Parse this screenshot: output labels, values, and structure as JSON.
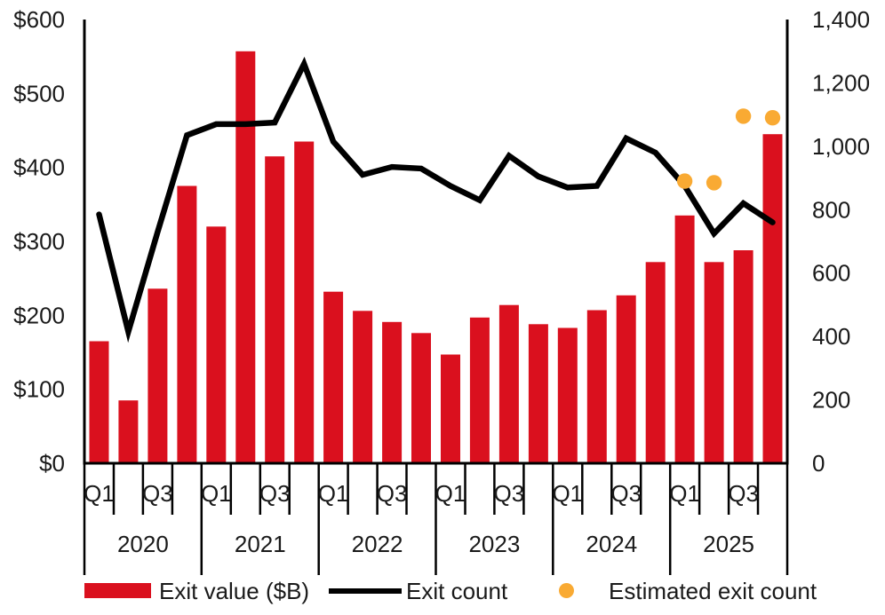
{
  "chart_data": {
    "type": "combo",
    "categories": [
      "2020 Q1",
      "2020 Q2",
      "2020 Q3",
      "2020 Q4",
      "2021 Q1",
      "2021 Q2",
      "2021 Q3",
      "2021 Q4",
      "2022 Q1",
      "2022 Q2",
      "2022 Q3",
      "2022 Q4",
      "2023 Q1",
      "2023 Q2",
      "2023 Q3",
      "2023 Q4",
      "2024 Q1",
      "2024 Q2",
      "2024 Q3",
      "2024 Q4",
      "2025 Q1",
      "2025 Q2",
      "2025 Q3",
      "2025 Q4"
    ],
    "series": [
      {
        "name": "Exit value ($B)",
        "type": "bar",
        "axis": "left",
        "color": "#DA101E",
        "values": [
          165,
          85,
          236,
          375,
          320,
          557,
          415,
          435,
          232,
          206,
          191,
          176,
          147,
          197,
          214,
          188,
          183,
          207,
          227,
          272,
          335,
          272,
          288,
          445
        ]
      },
      {
        "name": "Exit count",
        "type": "line",
        "axis": "right",
        "color": "#000000",
        "values": [
          785,
          415,
          730,
          1035,
          1070,
          1070,
          1075,
          1260,
          1015,
          910,
          935,
          930,
          875,
          830,
          970,
          905,
          870,
          875,
          1025,
          980,
          875,
          725,
          820,
          760
        ]
      },
      {
        "name": "Estimated exit count",
        "type": "scatter",
        "axis": "right",
        "color": "#F9AA33",
        "values": [
          null,
          null,
          null,
          null,
          null,
          null,
          null,
          null,
          null,
          null,
          null,
          null,
          null,
          null,
          null,
          null,
          null,
          null,
          null,
          null,
          890,
          885,
          1095,
          1090
        ]
      }
    ],
    "left_axis": {
      "min": 0,
      "max": 600,
      "tick_labels": [
        "$0",
        "$100",
        "$200",
        "$300",
        "$400",
        "$500",
        "$600"
      ]
    },
    "right_axis": {
      "min": 0,
      "max": 1400,
      "tick_labels": [
        "0",
        "200",
        "400",
        "600",
        "800",
        "1,000",
        "1,200",
        "1,400"
      ]
    },
    "x_axis": {
      "years": [
        "2020",
        "2021",
        "2022",
        "2023",
        "2024",
        "2025"
      ],
      "quarter_labels_shown": [
        "Q1",
        "Q3"
      ]
    },
    "grid": "off",
    "legend_position": "bottom"
  },
  "legend": {
    "items": [
      {
        "label": "Exit value ($B)",
        "swatch": "bar",
        "color": "#DA101E"
      },
      {
        "label": "Exit count",
        "swatch": "line",
        "color": "#000000"
      },
      {
        "label": "Estimated exit count",
        "swatch": "dot",
        "color": "#F9AA33"
      }
    ]
  },
  "colors": {
    "bar": "#DA101E",
    "line": "#000000",
    "dot": "#F9AA33",
    "axis": "#000000",
    "text": "#1a1a1a",
    "background": "#ffffff"
  }
}
